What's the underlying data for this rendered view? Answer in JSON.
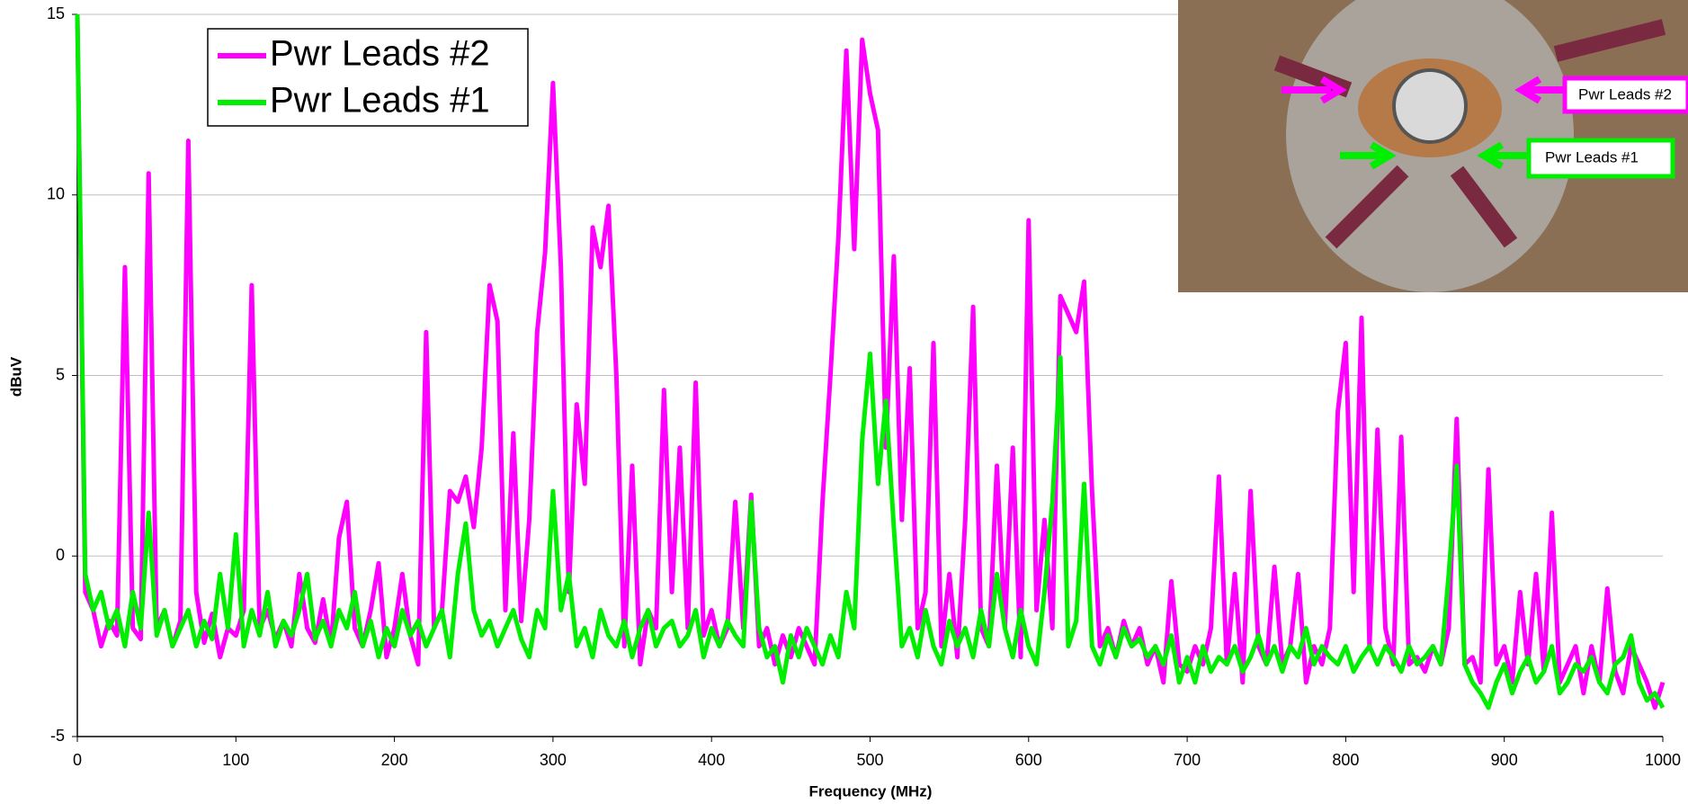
{
  "chart_data": {
    "type": "line",
    "xlabel": "Frequency (MHz)",
    "ylabel": "dBuV",
    "xlim": [
      0,
      1000
    ],
    "ylim": [
      -5,
      15
    ],
    "xticks": [
      0,
      100,
      200,
      300,
      400,
      500,
      600,
      700,
      800,
      900,
      1000
    ],
    "yticks": [
      -5,
      0,
      5,
      10,
      15
    ],
    "grid": true,
    "legend": "upper left",
    "annotations": [
      "Pwr Leads #2",
      "Pwr Leads #1"
    ],
    "x": [
      0,
      5,
      10,
      15,
      20,
      25,
      30,
      35,
      40,
      45,
      50,
      55,
      60,
      65,
      70,
      75,
      80,
      85,
      90,
      95,
      100,
      105,
      110,
      115,
      120,
      125,
      130,
      135,
      140,
      145,
      150,
      155,
      160,
      165,
      170,
      175,
      180,
      185,
      190,
      195,
      200,
      205,
      210,
      215,
      220,
      225,
      230,
      235,
      240,
      245,
      250,
      255,
      260,
      265,
      270,
      275,
      280,
      285,
      290,
      295,
      300,
      305,
      310,
      315,
      320,
      325,
      330,
      335,
      340,
      345,
      350,
      355,
      360,
      365,
      370,
      375,
      380,
      385,
      390,
      395,
      400,
      405,
      410,
      415,
      420,
      425,
      430,
      435,
      440,
      445,
      450,
      455,
      460,
      465,
      470,
      475,
      480,
      485,
      490,
      495,
      500,
      505,
      510,
      515,
      520,
      525,
      530,
      535,
      540,
      545,
      550,
      555,
      560,
      565,
      570,
      575,
      580,
      585,
      590,
      595,
      600,
      605,
      610,
      615,
      620,
      625,
      630,
      635,
      640,
      645,
      650,
      655,
      660,
      665,
      670,
      675,
      680,
      685,
      690,
      695,
      700,
      705,
      710,
      715,
      720,
      725,
      730,
      735,
      740,
      745,
      750,
      755,
      760,
      765,
      770,
      775,
      780,
      785,
      790,
      795,
      800,
      805,
      810,
      815,
      820,
      825,
      830,
      835,
      840,
      845,
      850,
      855,
      860,
      865,
      870,
      875,
      880,
      885,
      890,
      895,
      900,
      905,
      910,
      915,
      920,
      925,
      930,
      935,
      940,
      945,
      950,
      955,
      960,
      965,
      970,
      975,
      980,
      985,
      990,
      995,
      1000
    ],
    "series": [
      {
        "name": "Pwr Leads #2",
        "color": "#ff00ff",
        "values": [
          15,
          -1,
          -1.5,
          -2.5,
          -1.8,
          -2.2,
          8,
          -2,
          -2.3,
          10.6,
          -2,
          -1.5,
          -2.5,
          -1.8,
          11.5,
          -1,
          -2.4,
          -1.6,
          -2.8,
          -2,
          -2.2,
          -1.5,
          7.5,
          -2,
          -1.5,
          -2.3,
          -1.8,
          -2.5,
          -0.5,
          -2,
          -2.4,
          -1.2,
          -2.5,
          0.5,
          1.5,
          -2,
          -2.5,
          -1.5,
          -0.2,
          -2.8,
          -2,
          -0.5,
          -2.2,
          -3,
          6.2,
          -2,
          -1.5,
          1.8,
          1.5,
          2.2,
          0.8,
          3,
          7.5,
          6.5,
          -1.5,
          3.4,
          -1.8,
          1,
          6.2,
          8.4,
          13.1,
          8,
          -1,
          4.2,
          2,
          9.1,
          8,
          9.7,
          5,
          -2.5,
          2.5,
          -3,
          -1.5,
          -2,
          4.6,
          -1,
          3,
          -2,
          4.8,
          -2.2,
          -1.5,
          -2.5,
          -2,
          1.5,
          -2,
          1.7,
          -2.5,
          -2,
          -3,
          -2.2,
          -2.8,
          -2,
          -2.5,
          -3,
          1.5,
          5,
          8.8,
          14,
          8.5,
          14.3,
          12.8,
          11.8,
          3,
          8.3,
          1,
          5.2,
          -2,
          -1,
          5.9,
          -2.5,
          -0.5,
          -2.8,
          1,
          6.9,
          -2,
          -2.5,
          2.5,
          -2,
          3,
          -2.8,
          9.3,
          -1.5,
          1,
          -2,
          7.2,
          6.7,
          6.2,
          7.6,
          1.8,
          -2.5,
          -2,
          -2.8,
          -1.8,
          -2.5,
          -2,
          -3,
          -2.5,
          -3.5,
          -0.7,
          -3,
          -3.2,
          -2.5,
          -3,
          -2,
          2.2,
          -3,
          -0.5,
          -3.5,
          1.8,
          -2.5,
          -3,
          -0.3,
          -3,
          -2.5,
          -0.5,
          -3.5,
          -2.5,
          -3,
          -2,
          4,
          5.9,
          -1,
          6.6,
          -2.5,
          3.5,
          -2,
          -3,
          3.3,
          -3,
          -2.8,
          -3.2,
          -2.5,
          -3,
          -2,
          3.8,
          -3,
          -2.8,
          -3.5,
          2.4,
          -3,
          -2.5,
          -3.5,
          -1,
          -3,
          -0.5,
          -3.2,
          1.2,
          -3.5,
          -3,
          -2.5,
          -3.8,
          -2.5,
          -3.5,
          -0.9,
          -3.2,
          -3.8,
          -2.5,
          -3,
          -3.5,
          -4.2,
          -3.5
        ]
      },
      {
        "name": "Pwr Leads #1",
        "color": "#00ee00",
        "values": [
          15,
          -0.5,
          -1.5,
          -1,
          -2,
          -1.5,
          -2.5,
          -1,
          -2,
          1.2,
          -2.2,
          -1.5,
          -2.5,
          -2,
          -1.5,
          -2.5,
          -1.8,
          -2.3,
          -0.5,
          -2,
          0.6,
          -2.5,
          -1.5,
          -2.2,
          -1,
          -2.5,
          -1.8,
          -2.2,
          -1.5,
          -0.5,
          -2.3,
          -1.8,
          -2.5,
          -1.5,
          -2,
          -1,
          -2.5,
          -1.8,
          -2.8,
          -2,
          -2.5,
          -1.5,
          -2.2,
          -1.8,
          -2.5,
          -2,
          -1.5,
          -2.8,
          -0.5,
          0.9,
          -1.5,
          -2.2,
          -1.8,
          -2.5,
          -2,
          -1.5,
          -2.3,
          -2.8,
          -1.5,
          -2,
          1.8,
          -1.5,
          -0.5,
          -2.5,
          -2,
          -2.8,
          -1.5,
          -2.2,
          -2.5,
          -1.8,
          -2.8,
          -2,
          -1.5,
          -2.5,
          -2,
          -1.8,
          -2.5,
          -2.2,
          -1.5,
          -2.8,
          -2,
          -2.5,
          -1.8,
          -2.2,
          -2.5,
          1.5,
          -2,
          -2.8,
          -2.5,
          -3.5,
          -2.2,
          -2.8,
          -2,
          -2.5,
          -3,
          -2.2,
          -2.8,
          -1,
          -2,
          3.2,
          5.6,
          2,
          4.3,
          0.8,
          -2.5,
          -2,
          -2.8,
          -1.5,
          -2.5,
          -3,
          -1.8,
          -2.5,
          -2,
          -2.8,
          -1.5,
          -2.5,
          -0.5,
          -2,
          -2.8,
          -1.5,
          -2.5,
          -3,
          -1,
          1.5,
          5.5,
          -2.5,
          -1.8,
          2,
          -2.5,
          -3,
          -2.2,
          -2.8,
          -2,
          -2.5,
          -2.3,
          -2.8,
          -2.5,
          -3,
          -2.2,
          -3.5,
          -2.8,
          -3.5,
          -2.5,
          -3.2,
          -2.8,
          -3,
          -2.5,
          -3.2,
          -2.8,
          -2.2,
          -3,
          -2.5,
          -3.2,
          -2.5,
          -2.8,
          -2,
          -3,
          -2.5,
          -2.8,
          -3,
          -2.5,
          -3.2,
          -2.8,
          -2.5,
          -3,
          -2.5,
          -2.8,
          -3.2,
          -2.5,
          -3,
          -2.8,
          -2.5,
          -3,
          -0.5,
          2.5,
          -3,
          -3.5,
          -3.8,
          -4.2,
          -3.5,
          -3,
          -3.8,
          -3.2,
          -2.8,
          -3.5,
          -3.2,
          -2.5,
          -3.8,
          -3.5,
          -3,
          -3.2,
          -2.8,
          -3.5,
          -3.8,
          -3,
          -2.8,
          -2.2,
          -3.5,
          -4,
          -3.8,
          -4.2
        ]
      }
    ]
  }
}
